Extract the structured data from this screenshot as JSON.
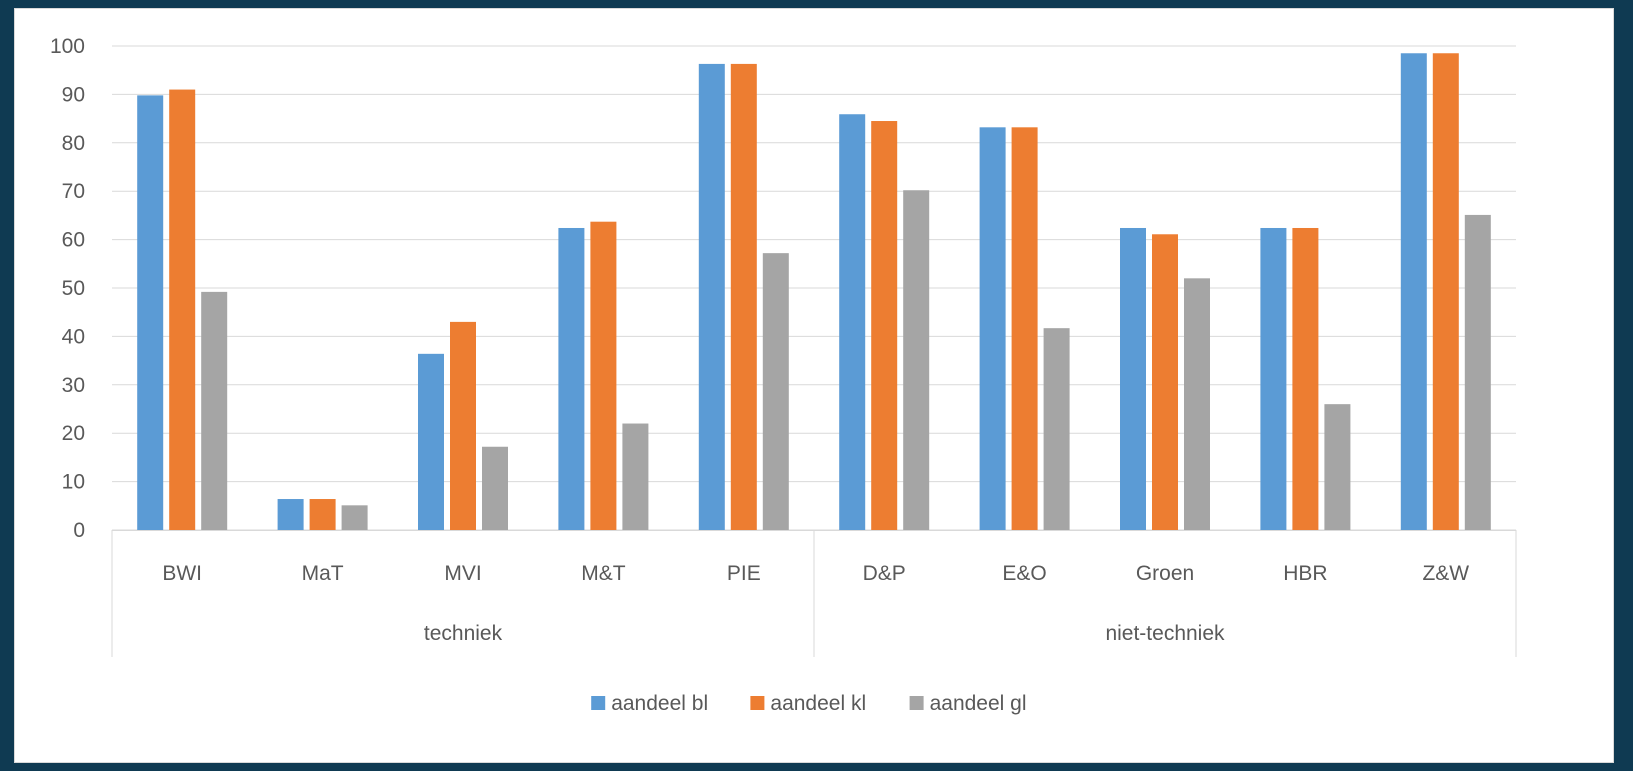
{
  "chart_data": {
    "type": "bar",
    "title": "",
    "xlabel": "",
    "ylabel": "",
    "ylim": [
      0,
      100
    ],
    "yticks": [
      0,
      10,
      20,
      30,
      40,
      50,
      60,
      70,
      80,
      90,
      100
    ],
    "grid": true,
    "legend_position": "bottom",
    "categories": [
      "BWI",
      "MaT",
      "MVI",
      "M&T",
      "PIE",
      "D&P",
      "E&O",
      "Groen",
      "HBR",
      "Z&W"
    ],
    "groups": [
      {
        "label": "techniek",
        "categories": [
          "BWI",
          "MaT",
          "MVI",
          "M&T",
          "PIE"
        ]
      },
      {
        "label": "niet-techniek",
        "categories": [
          "D&P",
          "E&O",
          "Groen",
          "HBR",
          "Z&W"
        ]
      }
    ],
    "series": [
      {
        "name": "aandeel bl",
        "color": "#5b9bd5",
        "values": [
          89.8,
          6.4,
          36.4,
          62.4,
          96.3,
          85.9,
          83.2,
          62.4,
          62.4,
          98.5
        ]
      },
      {
        "name": "aandeel kl",
        "color": "#ed7d31",
        "values": [
          91.0,
          6.4,
          43.0,
          63.7,
          96.3,
          84.5,
          83.2,
          61.1,
          62.4,
          98.5
        ]
      },
      {
        "name": "aandeel gl",
        "color": "#a5a5a5",
        "values": [
          49.2,
          5.1,
          17.2,
          22.0,
          57.2,
          70.2,
          41.7,
          52.0,
          26.0,
          65.1
        ]
      }
    ]
  }
}
